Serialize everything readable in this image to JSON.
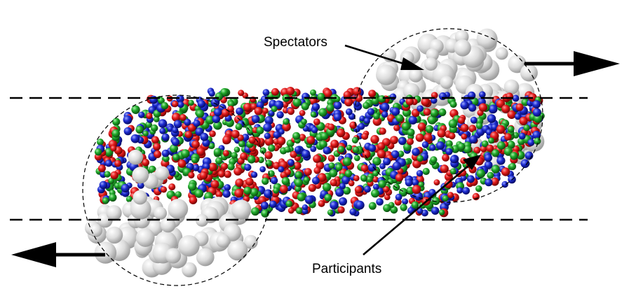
{
  "labels": {
    "spectators": "Spectators",
    "participants": "Participants"
  },
  "colors": {
    "red": "#e31b1b",
    "green": "#1fa92a",
    "blue": "#1c2bd0",
    "spectator": "#d4d4d4"
  }
}
